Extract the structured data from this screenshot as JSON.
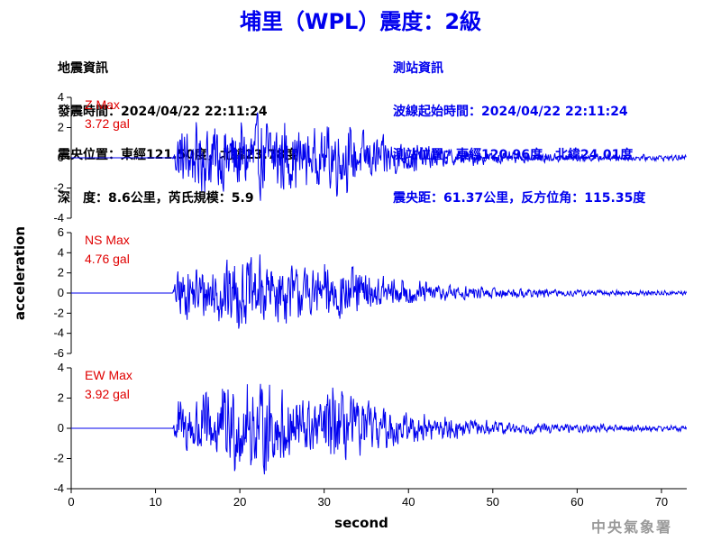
{
  "header": {
    "title": "埔里（WPL）震度：2級"
  },
  "quake_info": {
    "heading": "地震資訊",
    "origin_time": "發震時間：2024/04/22 22:11:24",
    "epicenter": "震央位置：東經121.50度，北緯23.78度",
    "depth_magnitude": "深　度：8.6公里，芮氏規模：5.9"
  },
  "station_info": {
    "heading": "測站資訊",
    "waveform_start": "波線起始時間：2024/04/22 22:11:24",
    "location": "測站位置：東經120.96度，北緯24.01度",
    "distance_azimuth": "震央距：61.37公里，反方位角：115.35度"
  },
  "axes": {
    "xlabel": "second",
    "ylabel": "acceleration"
  },
  "agency": "中央氣象署",
  "colors": {
    "title": "#0000ee",
    "trace": "#0000ee",
    "max_label": "#e00000",
    "station_info": "#0000ee"
  },
  "chart_data": {
    "type": "line",
    "x_unit": "second",
    "xlim": [
      0,
      73
    ],
    "x_ticks": [
      0,
      10,
      20,
      30,
      40,
      50,
      60,
      70
    ],
    "signal_onset_s": 12,
    "panels": [
      {
        "name": "Z",
        "max_label": "Z Max",
        "max_value": "3.72 gal",
        "peak": 3.72,
        "ylim": [
          -4,
          4
        ],
        "y_ticks": [
          -4,
          -2,
          0,
          2,
          4
        ]
      },
      {
        "name": "NS",
        "max_label": "NS Max",
        "max_value": "4.76 gal",
        "peak": 4.76,
        "ylim": [
          -6,
          6
        ],
        "y_ticks": [
          -6,
          -4,
          -2,
          0,
          2,
          4,
          6
        ]
      },
      {
        "name": "EW",
        "max_label": "EW Max",
        "max_value": "3.92 gal",
        "peak": 3.92,
        "ylim": [
          -4,
          4
        ],
        "y_ticks": [
          -4,
          -2,
          0,
          2,
          4
        ]
      }
    ]
  }
}
